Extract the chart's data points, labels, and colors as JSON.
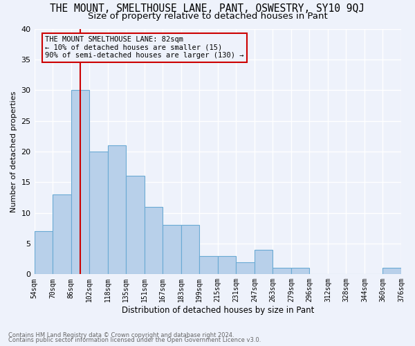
{
  "title": "THE MOUNT, SMELTHOUSE LANE, PANT, OSWESTRY, SY10 9QJ",
  "subtitle": "Size of property relative to detached houses in Pant",
  "xlabel": "Distribution of detached houses by size in Pant",
  "ylabel": "Number of detached properties",
  "footnote1": "Contains HM Land Registry data © Crown copyright and database right 2024.",
  "footnote2": "Contains public sector information licensed under the Open Government Licence v3.0.",
  "bin_labels": [
    "54sqm",
    "70sqm",
    "86sqm",
    "102sqm",
    "118sqm",
    "135sqm",
    "151sqm",
    "167sqm",
    "183sqm",
    "199sqm",
    "215sqm",
    "231sqm",
    "247sqm",
    "263sqm",
    "279sqm",
    "296sqm",
    "312sqm",
    "328sqm",
    "344sqm",
    "360sqm",
    "376sqm"
  ],
  "values": [
    7,
    13,
    30,
    20,
    21,
    16,
    11,
    8,
    8,
    3,
    3,
    2,
    4,
    1,
    1,
    0,
    0,
    0,
    0,
    1
  ],
  "bar_color": "#b8d0ea",
  "bar_edge_color": "#6aaad4",
  "vline_x_index": 2,
  "vline_color": "#cc0000",
  "annotation_line1": "THE MOUNT SMELTHOUSE LANE: 82sqm",
  "annotation_line2": "← 10% of detached houses are smaller (15)",
  "annotation_line3": "90% of semi-detached houses are larger (130) →",
  "annotation_box_edge": "#cc0000",
  "ylim": [
    0,
    40
  ],
  "yticks": [
    0,
    5,
    10,
    15,
    20,
    25,
    30,
    35,
    40
  ],
  "bg_color": "#eef2fb",
  "grid_color": "#ffffff",
  "title_fontsize": 10.5,
  "subtitle_fontsize": 9.5
}
